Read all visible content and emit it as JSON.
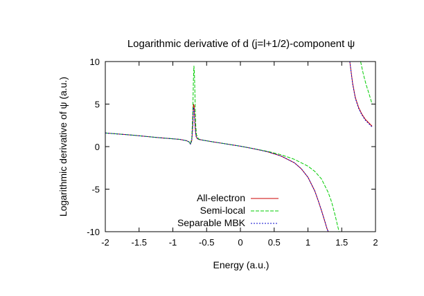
{
  "chart_data": {
    "type": "line",
    "title": "Logarithmic derivative of d (j=l+1/2)-component ψ",
    "xlabel": "Energy (a.u.)",
    "ylabel": "Logarithmic derivative of ψ (a.u.)",
    "xlim": [
      -2,
      2
    ],
    "ylim": [
      -10,
      10
    ],
    "xticks": [
      -2,
      -1.5,
      -1,
      -0.5,
      0,
      0.5,
      1,
      1.5,
      2
    ],
    "yticks": [
      -10,
      -5,
      0,
      5,
      10
    ],
    "xtick_labels": [
      "-2",
      "-1.5",
      "-1",
      "-0.5",
      "0",
      "0.5",
      "1",
      "1.5",
      "2"
    ],
    "ytick_labels": [
      "-10",
      "-5",
      "0",
      "5",
      "10"
    ],
    "grid": false,
    "legend_position": "bottom-left",
    "series": [
      {
        "name": "All-electron",
        "color": "#cc0000",
        "style": "solid",
        "x": [
          -2.0,
          -1.6,
          -1.2,
          -0.9,
          -0.8,
          -0.76,
          -0.74,
          -0.72,
          -0.705,
          -0.695,
          -0.685,
          -0.675,
          -0.665,
          -0.655,
          -0.645,
          -0.62,
          -0.55,
          -0.4,
          -0.2,
          0.0,
          0.2,
          0.4,
          0.6,
          0.8,
          0.9,
          1.0,
          1.1,
          1.15,
          1.2,
          1.25,
          1.28,
          1.3,
          1.62,
          1.66,
          1.7,
          1.75,
          1.8,
          1.85,
          1.9,
          1.95
        ],
        "y": [
          1.6,
          1.35,
          1.05,
          0.85,
          0.7,
          0.55,
          0.3,
          0.7,
          2.5,
          5.0,
          4.8,
          3.0,
          1.8,
          1.2,
          1.0,
          0.85,
          0.75,
          0.55,
          0.3,
          0.05,
          -0.25,
          -0.6,
          -1.1,
          -1.9,
          -2.6,
          -3.6,
          -5.2,
          -6.3,
          -7.5,
          -8.8,
          -9.6,
          -10.0,
          10.0,
          7.5,
          5.8,
          4.6,
          3.8,
          3.2,
          2.8,
          2.4
        ]
      },
      {
        "name": "Semi-local",
        "color": "#00cc00",
        "style": "dash",
        "x": [
          -2.0,
          -1.6,
          -1.2,
          -0.9,
          -0.8,
          -0.76,
          -0.74,
          -0.72,
          -0.705,
          -0.695,
          -0.688,
          -0.68,
          -0.67,
          -0.66,
          -0.65,
          -0.62,
          -0.55,
          -0.4,
          -0.2,
          0.0,
          0.2,
          0.4,
          0.6,
          0.8,
          1.0,
          1.1,
          1.2,
          1.3,
          1.35,
          1.4,
          1.43,
          1.46,
          1.78,
          1.82,
          1.86,
          1.9,
          1.95
        ],
        "y": [
          1.6,
          1.35,
          1.05,
          0.85,
          0.7,
          0.55,
          0.3,
          1.0,
          4.0,
          8.0,
          9.5,
          8.5,
          5.0,
          2.5,
          1.4,
          0.9,
          0.75,
          0.55,
          0.3,
          0.05,
          -0.25,
          -0.55,
          -0.95,
          -1.5,
          -2.3,
          -2.9,
          -3.8,
          -5.4,
          -6.5,
          -8.0,
          -9.0,
          -10.0,
          10.0,
          8.5,
          7.3,
          6.3,
          5.0
        ]
      },
      {
        "name": "Separable MBK",
        "color": "#0000cc",
        "style": "dot",
        "x": [
          -2.0,
          -1.6,
          -1.2,
          -0.9,
          -0.8,
          -0.76,
          -0.74,
          -0.72,
          -0.705,
          -0.695,
          -0.685,
          -0.675,
          -0.665,
          -0.655,
          -0.645,
          -0.62,
          -0.55,
          -0.4,
          -0.2,
          0.0,
          0.2,
          0.4,
          0.6,
          0.8,
          0.9,
          1.0,
          1.1,
          1.15,
          1.2,
          1.25,
          1.28,
          1.3,
          1.62,
          1.66,
          1.7,
          1.75,
          1.8,
          1.85,
          1.9,
          1.95
        ],
        "y": [
          1.6,
          1.35,
          1.05,
          0.85,
          0.7,
          0.55,
          0.3,
          0.7,
          2.5,
          4.6,
          4.4,
          2.8,
          1.7,
          1.2,
          1.0,
          0.85,
          0.75,
          0.55,
          0.3,
          0.05,
          -0.25,
          -0.6,
          -1.1,
          -1.9,
          -2.6,
          -3.6,
          -5.2,
          -6.3,
          -7.5,
          -8.8,
          -9.6,
          -10.0,
          10.0,
          7.4,
          5.7,
          4.5,
          3.7,
          3.1,
          2.7,
          2.3
        ]
      }
    ]
  }
}
